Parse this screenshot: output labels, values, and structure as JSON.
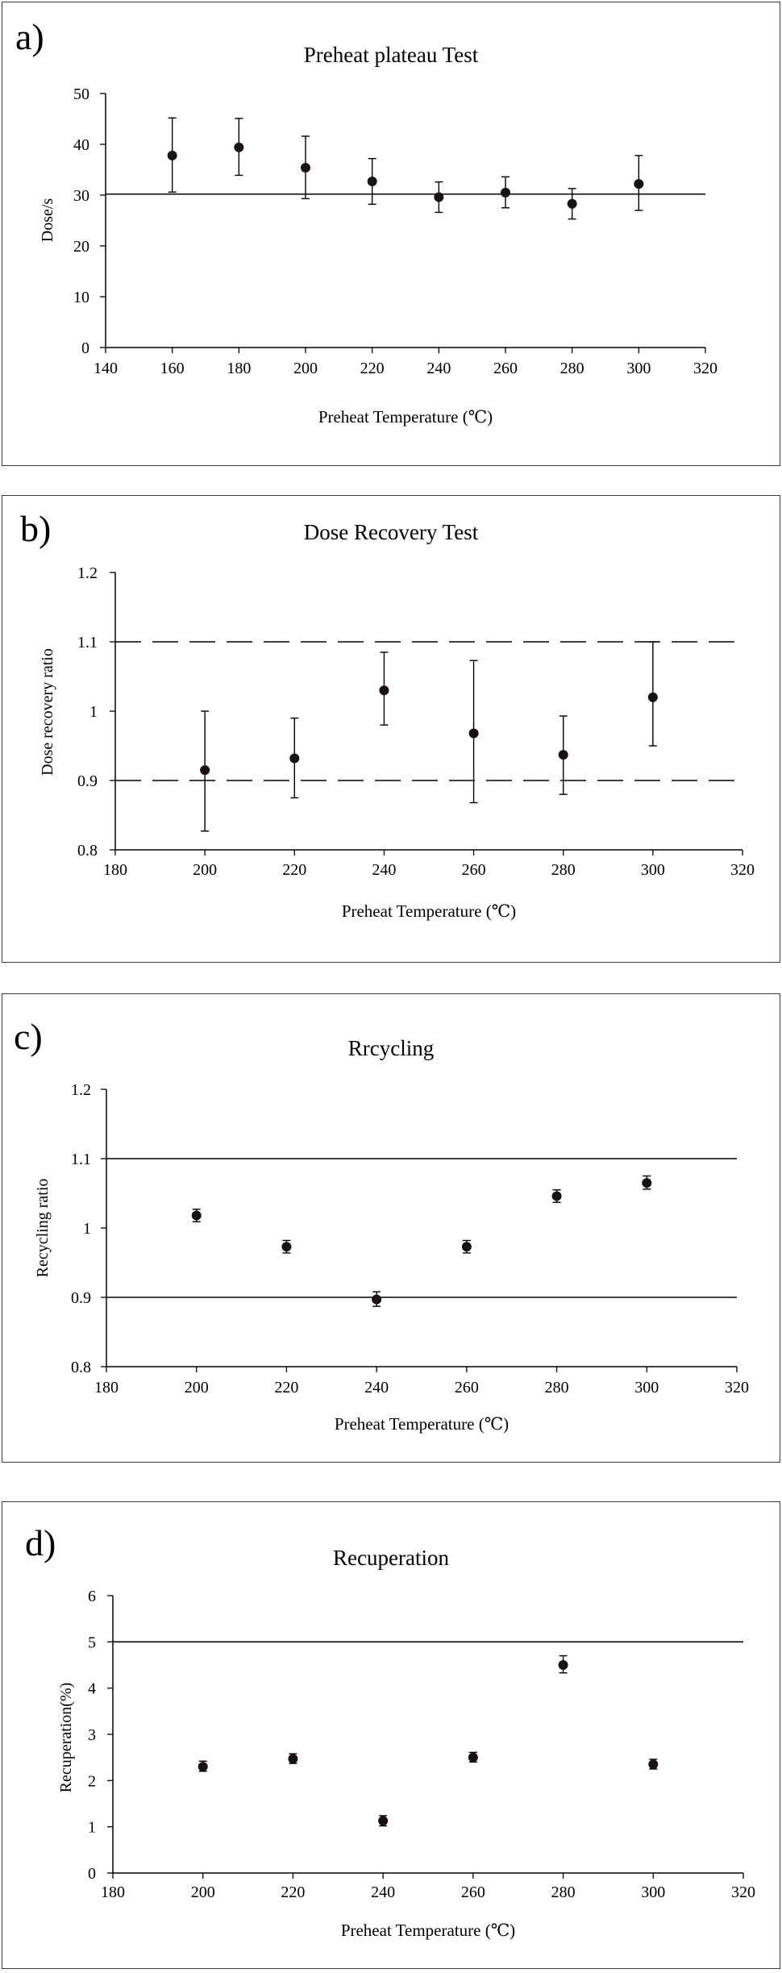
{
  "chart_data": [
    {
      "type": "scatter",
      "panel_label": "a)",
      "title": "Preheat plateau Test",
      "xlabel": "Preheat Temperature (℃)",
      "ylabel": "Dose/s",
      "xlim": [
        140,
        320
      ],
      "ylim": [
        0,
        50
      ],
      "xticks": [
        140,
        160,
        180,
        200,
        220,
        240,
        260,
        280,
        300,
        320
      ],
      "yticks": [
        0,
        10,
        20,
        30,
        40,
        50
      ],
      "ytick_labels": [
        "0",
        "10",
        "20",
        "30",
        "40",
        "50"
      ],
      "grid": false,
      "points": [
        {
          "x": 160,
          "y": 37.8,
          "lo": 30.6,
          "hi": 45.2
        },
        {
          "x": 180,
          "y": 39.4,
          "lo": 33.9,
          "hi": 45.1
        },
        {
          "x": 200,
          "y": 35.4,
          "lo": 29.3,
          "hi": 41.6
        },
        {
          "x": 220,
          "y": 32.7,
          "lo": 28.2,
          "hi": 37.2
        },
        {
          "x": 240,
          "y": 29.6,
          "lo": 26.6,
          "hi": 32.6
        },
        {
          "x": 260,
          "y": 30.5,
          "lo": 27.5,
          "hi": 33.6
        },
        {
          "x": 280,
          "y": 28.3,
          "lo": 25.3,
          "hi": 31.3
        },
        {
          "x": 300,
          "y": 32.2,
          "lo": 27.0,
          "hi": 37.8
        }
      ],
      "reference_lines": [
        {
          "y": 30.2,
          "style": "solid"
        }
      ]
    },
    {
      "type": "scatter",
      "panel_label": "b)",
      "title": "Dose Recovery Test",
      "xlabel": "Preheat Temperature (℃)",
      "ylabel": "Dose recovery ratio",
      "xlim": [
        180,
        320
      ],
      "ylim": [
        0.8,
        1.2
      ],
      "xticks": [
        180,
        200,
        220,
        240,
        260,
        280,
        300,
        320
      ],
      "yticks": [
        0.8,
        0.9,
        1.0,
        1.1,
        1.2
      ],
      "ytick_labels": [
        "0.8",
        "0.9",
        "1",
        "1.1",
        "1.2"
      ],
      "grid": false,
      "points": [
        {
          "x": 200,
          "y": 0.915,
          "lo": 0.827,
          "hi": 1.0
        },
        {
          "x": 220,
          "y": 0.932,
          "lo": 0.875,
          "hi": 0.99
        },
        {
          "x": 240,
          "y": 1.03,
          "lo": 0.98,
          "hi": 1.085
        },
        {
          "x": 260,
          "y": 0.968,
          "lo": 0.868,
          "hi": 1.073
        },
        {
          "x": 280,
          "y": 0.937,
          "lo": 0.88,
          "hi": 0.993
        },
        {
          "x": 300,
          "y": 1.02,
          "lo": 0.95,
          "hi": 1.1
        }
      ],
      "reference_lines": [
        {
          "y": 1.1,
          "style": "dashed"
        },
        {
          "y": 0.9,
          "style": "dashed"
        }
      ]
    },
    {
      "type": "scatter",
      "panel_label": "c)",
      "title": "Rrcycling",
      "xlabel": "Preheat Temperature (℃)",
      "ylabel": "Recycling ratio",
      "xlim": [
        180,
        320
      ],
      "ylim": [
        0.8,
        1.2
      ],
      "xticks": [
        180,
        200,
        220,
        240,
        260,
        280,
        300,
        320
      ],
      "yticks": [
        0.8,
        0.9,
        1.0,
        1.1,
        1.2
      ],
      "ytick_labels": [
        "0.8",
        "0.9",
        "1",
        "1.1",
        "1.2"
      ],
      "grid": false,
      "points": [
        {
          "x": 200,
          "y": 1.018,
          "lo": 1.009,
          "hi": 1.027
        },
        {
          "x": 220,
          "y": 0.973,
          "lo": 0.964,
          "hi": 0.982
        },
        {
          "x": 240,
          "y": 0.897,
          "lo": 0.887,
          "hi": 0.908
        },
        {
          "x": 260,
          "y": 0.973,
          "lo": 0.964,
          "hi": 0.982
        },
        {
          "x": 280,
          "y": 1.046,
          "lo": 1.037,
          "hi": 1.055
        },
        {
          "x": 300,
          "y": 1.065,
          "lo": 1.056,
          "hi": 1.075
        }
      ],
      "reference_lines": [
        {
          "y": 1.1,
          "style": "solid"
        },
        {
          "y": 0.9,
          "style": "solid"
        }
      ]
    },
    {
      "type": "scatter",
      "panel_label": "d)",
      "title": "Recuperation",
      "xlabel": "Preheat Temperature (℃)",
      "ylabel": "Recuperation(%)",
      "xlim": [
        180,
        320
      ],
      "ylim": [
        0,
        6
      ],
      "xticks": [
        180,
        200,
        220,
        240,
        260,
        280,
        300,
        320
      ],
      "yticks": [
        0,
        1,
        2,
        3,
        4,
        5,
        6
      ],
      "ytick_labels": [
        "0",
        "1",
        "2",
        "3",
        "4",
        "5",
        "6"
      ],
      "grid": false,
      "points": [
        {
          "x": 200,
          "y": 2.3,
          "lo": 2.2,
          "hi": 2.42
        },
        {
          "x": 220,
          "y": 2.47,
          "lo": 2.37,
          "hi": 2.58
        },
        {
          "x": 240,
          "y": 1.13,
          "lo": 1.02,
          "hi": 1.24
        },
        {
          "x": 260,
          "y": 2.5,
          "lo": 2.4,
          "hi": 2.61
        },
        {
          "x": 280,
          "y": 4.5,
          "lo": 4.33,
          "hi": 4.7
        },
        {
          "x": 300,
          "y": 2.35,
          "lo": 2.25,
          "hi": 2.46
        }
      ],
      "reference_lines": [
        {
          "y": 5.0,
          "style": "solid"
        }
      ]
    }
  ]
}
